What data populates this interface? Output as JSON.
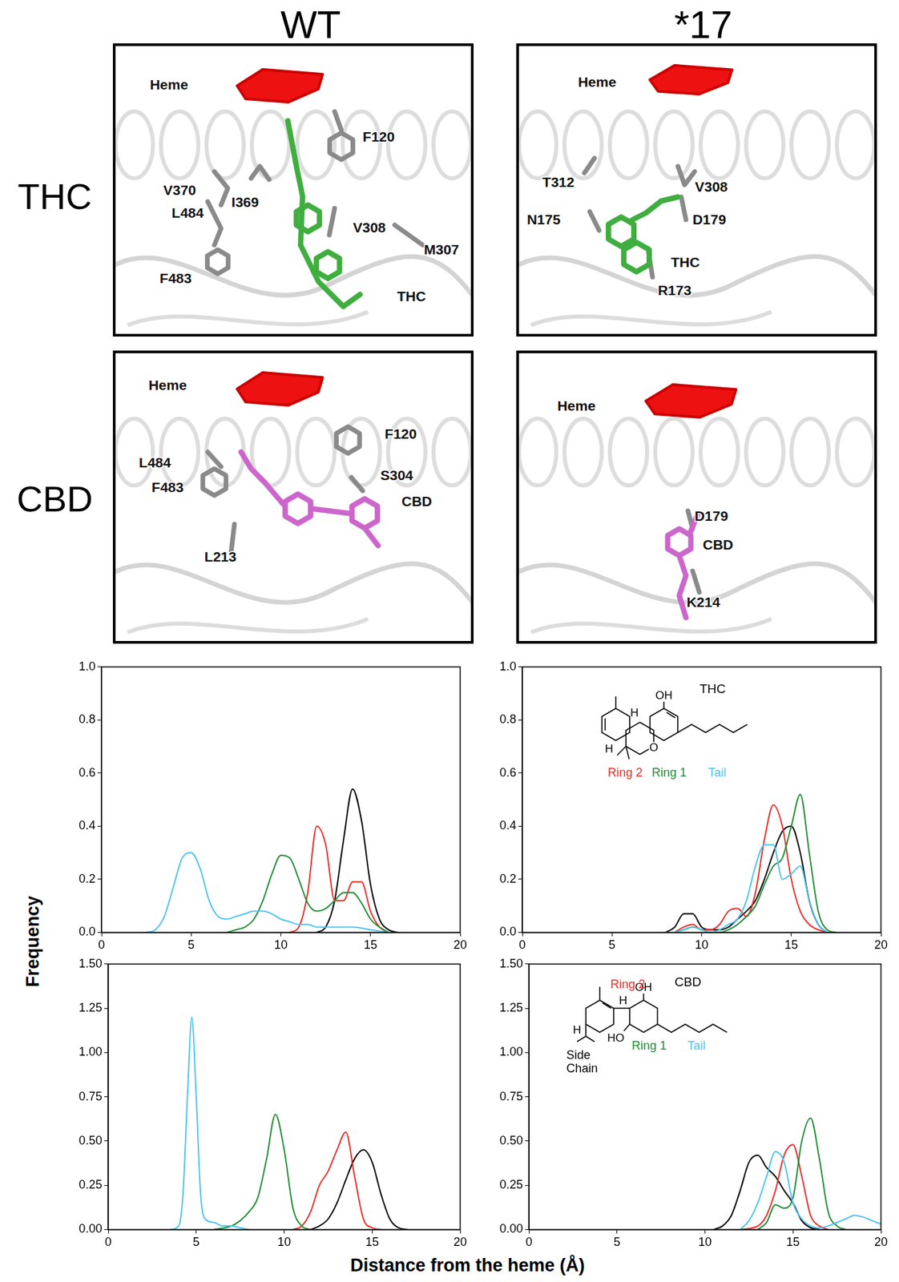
{
  "column_titles": [
    "WT",
    "*17"
  ],
  "row_titles": [
    "THC",
    "CBD"
  ],
  "panels": [
    {
      "labels": [
        "Heme",
        "V370",
        "I369",
        "L484",
        "F483",
        "F120",
        "V308",
        "M307",
        "THC"
      ]
    },
    {
      "labels": [
        "Heme",
        "T312",
        "V308",
        "N175",
        "D179",
        "THC",
        "R173"
      ]
    },
    {
      "labels": [
        "Heme",
        "F120",
        "L484",
        "F483",
        "S304",
        "L213",
        "CBD"
      ]
    },
    {
      "labels": [
        "Heme",
        "D179",
        "CBD",
        "K214"
      ]
    }
  ],
  "shared_axis_labels": {
    "x": "Distance from the heme (Å)",
    "y": "Frequency"
  },
  "chart_data": [
    {
      "type": "line",
      "xlim": [
        0,
        20
      ],
      "xticks": [
        0,
        5,
        10,
        15,
        20
      ],
      "ylim": [
        0,
        1
      ],
      "yticks": [
        {
          "value": 0,
          "label": "0.0"
        },
        0.2,
        0.4,
        0.6,
        0.8,
        {
          "value": 1,
          "label": "1.0"
        }
      ],
      "grid": false,
      "series": [
        {
          "color": "#4cc3f1",
          "x": [
            2.5,
            3,
            3.5,
            4,
            4.5,
            5,
            5.5,
            6,
            6.5,
            7,
            7.5,
            8,
            8.5,
            9,
            9.5,
            10,
            10.5,
            11,
            11.5,
            12,
            13,
            14,
            15,
            16
          ],
          "values": [
            0,
            0.01,
            0.06,
            0.17,
            0.28,
            0.3,
            0.24,
            0.12,
            0.06,
            0.05,
            0.06,
            0.07,
            0.08,
            0.08,
            0.07,
            0.05,
            0.04,
            0.03,
            0.03,
            0.02,
            0.02,
            0.02,
            0.01,
            0
          ]
        },
        {
          "color": "#1e8c32",
          "x": [
            7,
            7.5,
            8,
            8.5,
            9,
            9.5,
            10,
            10.5,
            11,
            11.5,
            12,
            12.5,
            13,
            13.5,
            14,
            14.5,
            15,
            15.5,
            16
          ],
          "values": [
            0,
            0.01,
            0.02,
            0.05,
            0.12,
            0.22,
            0.29,
            0.28,
            0.2,
            0.11,
            0.08,
            0.09,
            0.12,
            0.15,
            0.15,
            0.11,
            0.05,
            0.02,
            0
          ]
        },
        {
          "color": "#ee2a24",
          "x": [
            10.5,
            11,
            11.5,
            12,
            12.5,
            13,
            13.5,
            14,
            14.5,
            15,
            15.5,
            16
          ],
          "values": [
            0,
            0.02,
            0.15,
            0.4,
            0.33,
            0.12,
            0.12,
            0.19,
            0.19,
            0.08,
            0.02,
            0
          ]
        },
        {
          "color": "#000000",
          "x": [
            12,
            12.5,
            13,
            13.5,
            14,
            14.5,
            15,
            15.5,
            16,
            16.5
          ],
          "values": [
            0,
            0.02,
            0.12,
            0.35,
            0.54,
            0.42,
            0.18,
            0.05,
            0.01,
            0
          ]
        }
      ]
    },
    {
      "type": "line",
      "xlim": [
        0,
        20
      ],
      "xticks": [
        0,
        5,
        10,
        15,
        20
      ],
      "ylim": [
        0,
        1
      ],
      "yticks": [
        {
          "value": 0,
          "label": "0.0"
        },
        0.2,
        0.4,
        0.6,
        0.8,
        {
          "value": 1,
          "label": "1.0"
        }
      ],
      "grid": false,
      "inset": {
        "title": "THC",
        "atom_labels": [
          "OH",
          "H",
          "H",
          "O"
        ]
      },
      "series": [
        {
          "name": "Tail",
          "color": "#4cc3f1",
          "x": [
            8.5,
            9,
            9.5,
            10,
            10.5,
            11,
            11.5,
            12,
            12.5,
            13,
            13.5,
            14,
            14.5,
            15,
            15.5,
            16,
            16.5,
            17
          ],
          "values": [
            0,
            0.01,
            0.02,
            0.01,
            0,
            0.01,
            0.03,
            0.05,
            0.12,
            0.25,
            0.33,
            0.33,
            0.2,
            0.22,
            0.25,
            0.12,
            0.03,
            0
          ]
        },
        {
          "name": "Ring 1",
          "color": "#1e8c32",
          "x": [
            8.5,
            9,
            9.5,
            10,
            10.5,
            11,
            11.5,
            12,
            12.5,
            13,
            13.5,
            14,
            14.5,
            15,
            15.5,
            16,
            16.5,
            17,
            17.5
          ],
          "values": [
            0,
            0.01,
            0.02,
            0.01,
            0,
            0,
            0.01,
            0.03,
            0.06,
            0.1,
            0.18,
            0.25,
            0.28,
            0.4,
            0.52,
            0.3,
            0.08,
            0.01,
            0
          ]
        },
        {
          "name": "Ring 2",
          "color": "#ee2a24",
          "x": [
            8.5,
            9,
            9.5,
            10,
            10.5,
            11,
            11.5,
            12,
            12.5,
            13,
            13.5,
            14,
            14.5,
            15,
            15.5,
            16,
            16.5,
            17
          ],
          "values": [
            0,
            0.02,
            0.03,
            0.01,
            0.01,
            0.03,
            0.08,
            0.09,
            0.06,
            0.15,
            0.35,
            0.48,
            0.4,
            0.2,
            0.08,
            0.03,
            0.01,
            0
          ]
        },
        {
          "name": null,
          "color": "#000000",
          "x": [
            8,
            8.5,
            9,
            9.5,
            10,
            10.5,
            11,
            11.5,
            12,
            12.5,
            13,
            13.5,
            14,
            14.5,
            15,
            15.5,
            16,
            16.5,
            17
          ],
          "values": [
            0,
            0.02,
            0.07,
            0.07,
            0.02,
            0.01,
            0.01,
            0.02,
            0.05,
            0.08,
            0.12,
            0.2,
            0.3,
            0.38,
            0.4,
            0.3,
            0.12,
            0.03,
            0
          ]
        }
      ]
    },
    {
      "type": "line",
      "xlim": [
        0,
        20
      ],
      "xticks": [
        0,
        5,
        10,
        15,
        20
      ],
      "ylim": [
        0,
        1.5
      ],
      "yticks": [
        {
          "value": 0,
          "label": "0.00"
        },
        0.25,
        {
          "value": 0.5,
          "label": "0.50"
        },
        0.75,
        {
          "value": 1,
          "label": "1.00"
        },
        1.25,
        {
          "value": 1.5,
          "label": "1.50"
        }
      ],
      "grid": false,
      "series": [
        {
          "color": "#4cc3f1",
          "x": [
            3.5,
            4,
            4.25,
            4.5,
            4.75,
            5,
            5.25,
            5.5,
            6,
            6.5,
            7,
            7.5,
            8
          ],
          "values": [
            0,
            0.02,
            0.2,
            0.75,
            1.2,
            0.75,
            0.2,
            0.06,
            0.04,
            0.02,
            0.02,
            0.01,
            0
          ]
        },
        {
          "color": "#1e8c32",
          "x": [
            6,
            7,
            7.5,
            8,
            8.5,
            9,
            9.5,
            10,
            10.5,
            11,
            11.5
          ],
          "values": [
            0,
            0.02,
            0.05,
            0.1,
            0.18,
            0.4,
            0.65,
            0.45,
            0.12,
            0.02,
            0
          ]
        },
        {
          "color": "#ee2a24",
          "x": [
            10.5,
            11,
            11.5,
            12,
            12.5,
            13,
            13.5,
            14,
            14.5,
            15,
            15.5
          ],
          "values": [
            0,
            0.02,
            0.1,
            0.25,
            0.33,
            0.45,
            0.55,
            0.3,
            0.06,
            0.01,
            0
          ]
        },
        {
          "color": "#000000",
          "x": [
            11.5,
            12,
            12.5,
            13,
            13.5,
            14,
            14.5,
            15,
            15.5,
            16,
            16.5,
            17
          ],
          "values": [
            0,
            0.02,
            0.06,
            0.15,
            0.28,
            0.4,
            0.45,
            0.38,
            0.2,
            0.06,
            0.01,
            0
          ]
        }
      ]
    },
    {
      "type": "line",
      "xlim": [
        0,
        20
      ],
      "xticks": [
        0,
        5,
        10,
        15,
        20
      ],
      "ylim": [
        0,
        1.5
      ],
      "yticks": [
        {
          "value": 0,
          "label": "0.00"
        },
        0.25,
        {
          "value": 0.5,
          "label": "0.50"
        },
        0.75,
        {
          "value": 1,
          "label": "1.00"
        },
        1.25,
        {
          "value": 1.5,
          "label": "1.50"
        }
      ],
      "grid": false,
      "inset": {
        "title": "CBD",
        "atom_labels": [
          "OH",
          "HO",
          "H",
          "H"
        ]
      },
      "series": [
        {
          "name": "Tail",
          "color": "#4cc3f1",
          "x": [
            12,
            12.5,
            13,
            13.5,
            14,
            14.5,
            15,
            15.5,
            16,
            16.5,
            17,
            17.5,
            18,
            18.5,
            19,
            19.5,
            20
          ],
          "values": [
            0,
            0.05,
            0.15,
            0.3,
            0.44,
            0.38,
            0.15,
            0.06,
            0.02,
            0.01,
            0.02,
            0.04,
            0.06,
            0.08,
            0.07,
            0.05,
            0.03
          ]
        },
        {
          "name": "Ring 1",
          "color": "#1e8c32",
          "x": [
            13,
            13.5,
            14,
            14.5,
            15,
            15.5,
            16,
            16.5,
            17,
            17.5,
            18
          ],
          "values": [
            0,
            0.04,
            0.14,
            0.12,
            0.18,
            0.5,
            0.63,
            0.4,
            0.1,
            0.02,
            0
          ]
        },
        {
          "name": "Ring 2",
          "color": "#ee2a24",
          "x": [
            12,
            13,
            13.5,
            14,
            14.5,
            15,
            15.5,
            16,
            16.5,
            17
          ],
          "values": [
            0,
            0.02,
            0.08,
            0.22,
            0.42,
            0.48,
            0.3,
            0.08,
            0.02,
            0
          ]
        },
        {
          "name": "Side Chain",
          "color": "#000000",
          "x": [
            10.5,
            11,
            11.5,
            12,
            12.5,
            13,
            13.5,
            14,
            14.5,
            15,
            15.5,
            16,
            16.5
          ],
          "values": [
            0,
            0.02,
            0.08,
            0.22,
            0.38,
            0.42,
            0.35,
            0.3,
            0.22,
            0.15,
            0.05,
            0.01,
            0
          ]
        }
      ]
    }
  ]
}
